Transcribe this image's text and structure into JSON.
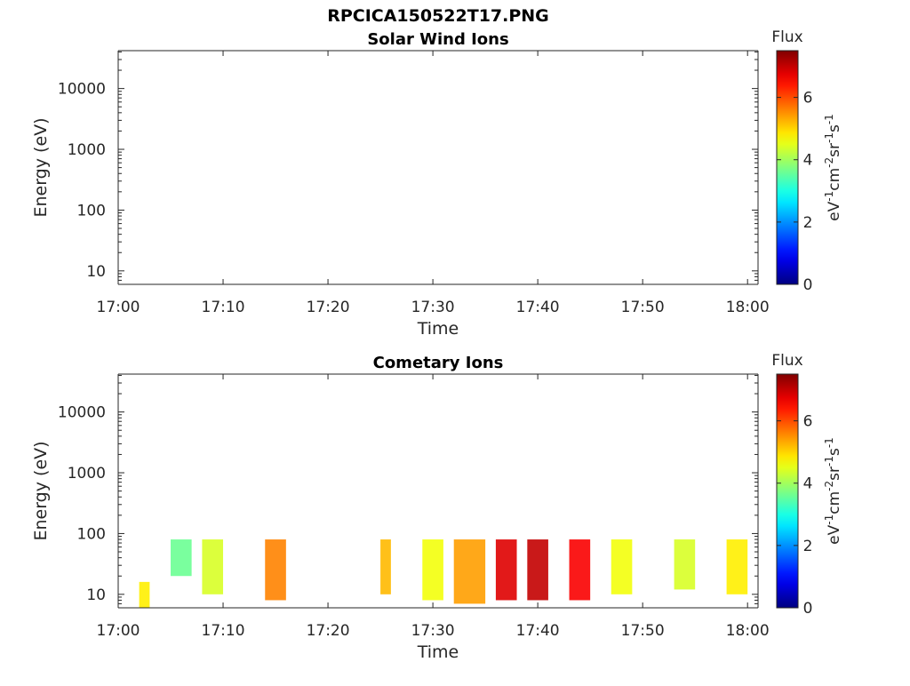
{
  "figure": {
    "title": "RPCICA150522T17.PNG"
  },
  "chart_data": [
    {
      "type": "heatmap",
      "title": "Solar Wind Ions",
      "xlabel": "Time",
      "ylabel": "Energy (eV)",
      "x_ticks": [
        "17:00",
        "17:10",
        "17:20",
        "17:30",
        "17:40",
        "17:50",
        "18:00"
      ],
      "xlim": [
        "17:00",
        "18:01"
      ],
      "y_scale": "log",
      "y_ticks": [
        10,
        100,
        1000,
        10000
      ],
      "ylim": [
        6,
        42000
      ],
      "colorbar": {
        "label": "Flux",
        "unit_base": "eV",
        "unit_sup1": "-1",
        "unit_mid": "cm",
        "unit_sup2": "-2",
        "unit_mid2": "sr",
        "unit_sup3": "-1",
        "unit_mid3": "s",
        "unit_sup4": "-1",
        "ticks": [
          0,
          2,
          4,
          6
        ],
        "range": [
          0,
          7.5
        ],
        "colormap": "jet"
      },
      "bands": []
    },
    {
      "type": "heatmap",
      "title": "Cometary Ions",
      "xlabel": "Time",
      "ylabel": "Energy (eV)",
      "x_ticks": [
        "17:00",
        "17:10",
        "17:20",
        "17:30",
        "17:40",
        "17:50",
        "18:00"
      ],
      "xlim": [
        "17:00",
        "18:01"
      ],
      "y_scale": "log",
      "y_ticks": [
        10,
        100,
        1000,
        10000
      ],
      "ylim": [
        6,
        42000
      ],
      "colorbar": {
        "label": "Flux",
        "unit_base": "eV",
        "unit_sup1": "-1",
        "unit_mid": "cm",
        "unit_sup2": "-2",
        "unit_mid2": "sr",
        "unit_sup3": "-1",
        "unit_mid3": "s",
        "unit_sup4": "-1",
        "ticks": [
          0,
          2,
          4,
          6
        ],
        "range": [
          0,
          7.5
        ],
        "colormap": "jet"
      },
      "bands": [
        {
          "t0": "17:02",
          "t1": "17:03",
          "e_low": 6,
          "e_high": 16,
          "flux": 4.8
        },
        {
          "t0": "17:05",
          "t1": "17:07",
          "e_low": 20,
          "e_high": 80,
          "flux": 3.6
        },
        {
          "t0": "17:08",
          "t1": "17:10",
          "e_low": 10,
          "e_high": 80,
          "flux": 4.4
        },
        {
          "t0": "17:14",
          "t1": "17:16",
          "e_low": 8,
          "e_high": 80,
          "flux": 5.6
        },
        {
          "t0": "17:25",
          "t1": "17:26",
          "e_low": 10,
          "e_high": 80,
          "flux": 5.2
        },
        {
          "t0": "17:29",
          "t1": "17:31",
          "e_low": 8,
          "e_high": 80,
          "flux": 4.6
        },
        {
          "t0": "17:32",
          "t1": "17:35",
          "e_low": 7,
          "e_high": 80,
          "flux": 5.4
        },
        {
          "t0": "17:36",
          "t1": "17:38",
          "e_low": 8,
          "e_high": 80,
          "flux": 6.8
        },
        {
          "t0": "17:39",
          "t1": "17:41",
          "e_low": 8,
          "e_high": 80,
          "flux": 7.0
        },
        {
          "t0": "17:43",
          "t1": "17:45",
          "e_low": 8,
          "e_high": 80,
          "flux": 6.6
        },
        {
          "t0": "17:47",
          "t1": "17:49",
          "e_low": 10,
          "e_high": 80,
          "flux": 4.6
        },
        {
          "t0": "17:53",
          "t1": "17:55",
          "e_low": 12,
          "e_high": 80,
          "flux": 4.4
        },
        {
          "t0": "17:58",
          "t1": "18:00",
          "e_low": 10,
          "e_high": 80,
          "flux": 4.8
        }
      ]
    }
  ]
}
